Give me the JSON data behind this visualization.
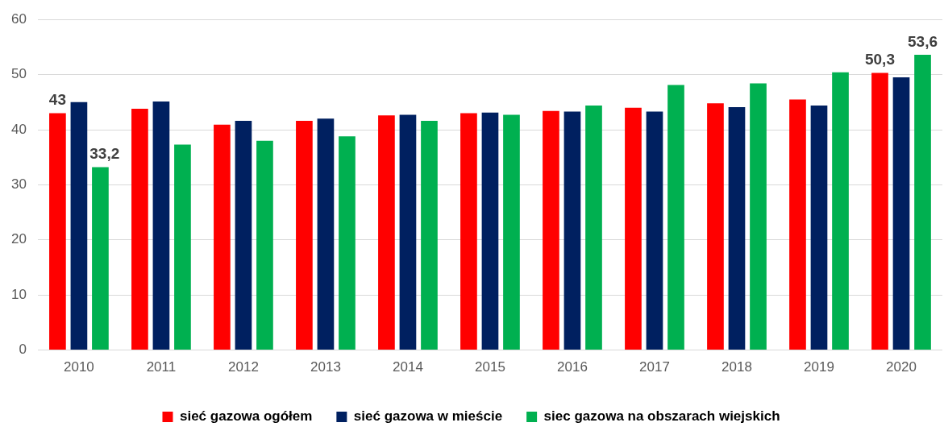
{
  "chart_data": {
    "type": "bar",
    "categories": [
      "2010",
      "2011",
      "2012",
      "2013",
      "2014",
      "2015",
      "2016",
      "2017",
      "2018",
      "2019",
      "2020"
    ],
    "series": [
      {
        "name": "sieć gazowa ogółem",
        "color": "#ff0000",
        "values": [
          43,
          43.8,
          40.9,
          41.6,
          42.6,
          43.0,
          43.4,
          44.0,
          44.8,
          45.5,
          50.3
        ],
        "value_labels": [
          "43",
          null,
          null,
          null,
          null,
          null,
          null,
          null,
          null,
          null,
          "50,3"
        ]
      },
      {
        "name": "sieć gazowa w mieście",
        "color": "#002060",
        "values": [
          45.0,
          45.1,
          41.6,
          42.0,
          42.7,
          43.1,
          43.3,
          43.3,
          44.1,
          44.4,
          49.5
        ]
      },
      {
        "name": "siec gazowa na obszarach wiejskich",
        "color": "#00b050",
        "values": [
          33.2,
          37.3,
          38.0,
          38.8,
          41.6,
          42.7,
          44.4,
          48.1,
          48.4,
          50.4,
          53.6
        ],
        "value_labels": [
          "33,2",
          null,
          null,
          null,
          null,
          null,
          null,
          null,
          null,
          null,
          "53,6"
        ]
      }
    ],
    "ylim": [
      0,
      60
    ],
    "yticks": [
      0,
      10,
      20,
      30,
      40,
      50,
      60
    ],
    "grid": "y",
    "legend": "bottom"
  }
}
